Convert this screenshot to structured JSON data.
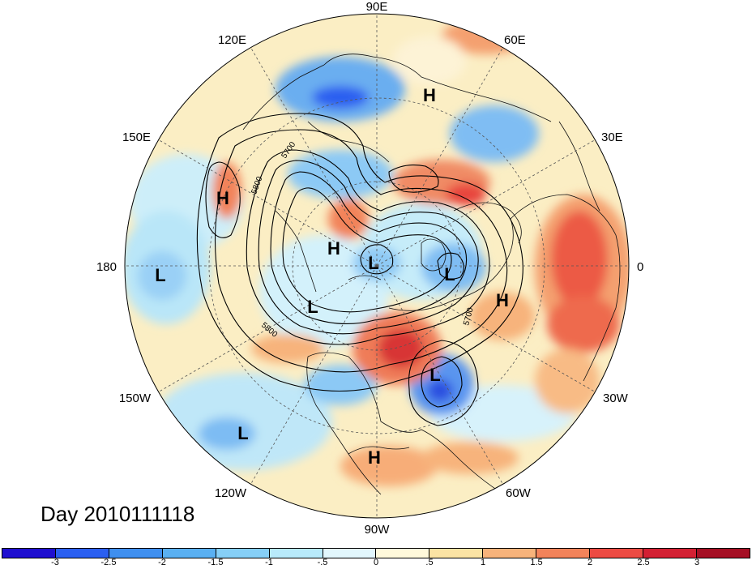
{
  "title": "Day 2010111118",
  "longitude_labels": {
    "deg0": "0",
    "deg30e": "30E",
    "deg60e": "60E",
    "deg90e": "90E",
    "deg120e": "120E",
    "deg150e": "150E",
    "deg180": "180",
    "deg150w": "150W",
    "deg120w": "120W",
    "deg90w": "90W",
    "deg60w": "60W",
    "deg30w": "30W"
  },
  "pressure_centers": [
    {
      "type": "H",
      "label": "H"
    },
    {
      "type": "H",
      "label": "H"
    },
    {
      "type": "H",
      "label": "H"
    },
    {
      "type": "H",
      "label": "H"
    },
    {
      "type": "H",
      "label": "H"
    },
    {
      "type": "L",
      "label": "L"
    },
    {
      "type": "L",
      "label": "L"
    },
    {
      "type": "L",
      "label": "L"
    },
    {
      "type": "L",
      "label": "L"
    },
    {
      "type": "L",
      "label": "L"
    },
    {
      "type": "L",
      "label": "L"
    }
  ],
  "contour_labels": [
    "5700",
    "5800",
    "5800",
    "5700"
  ],
  "colorbar": {
    "colors": [
      "#1f0fd0",
      "#2a5ff0",
      "#3f8fef",
      "#5ab0f2",
      "#86cff7",
      "#b8eafb",
      "#e2f7fd",
      "#fff9db",
      "#fbe3a4",
      "#f7b37b",
      "#f2835a",
      "#ec4b43",
      "#d32033",
      "#a50f24"
    ],
    "ticks": [
      "-3",
      "-2.5",
      "-2",
      "-1.5",
      "-1",
      "-.5",
      "0",
      ".5",
      "1",
      "1.5",
      "2",
      "2.5",
      "3"
    ]
  },
  "colors": {
    "map_background": "#f4f0e6",
    "anomaly_neg_strong": "#2a5ff0",
    "anomaly_neg_weak": "#b8eafb",
    "anomaly_pos_weak": "#fbe3a4",
    "anomaly_pos_strong": "#d32033"
  }
}
